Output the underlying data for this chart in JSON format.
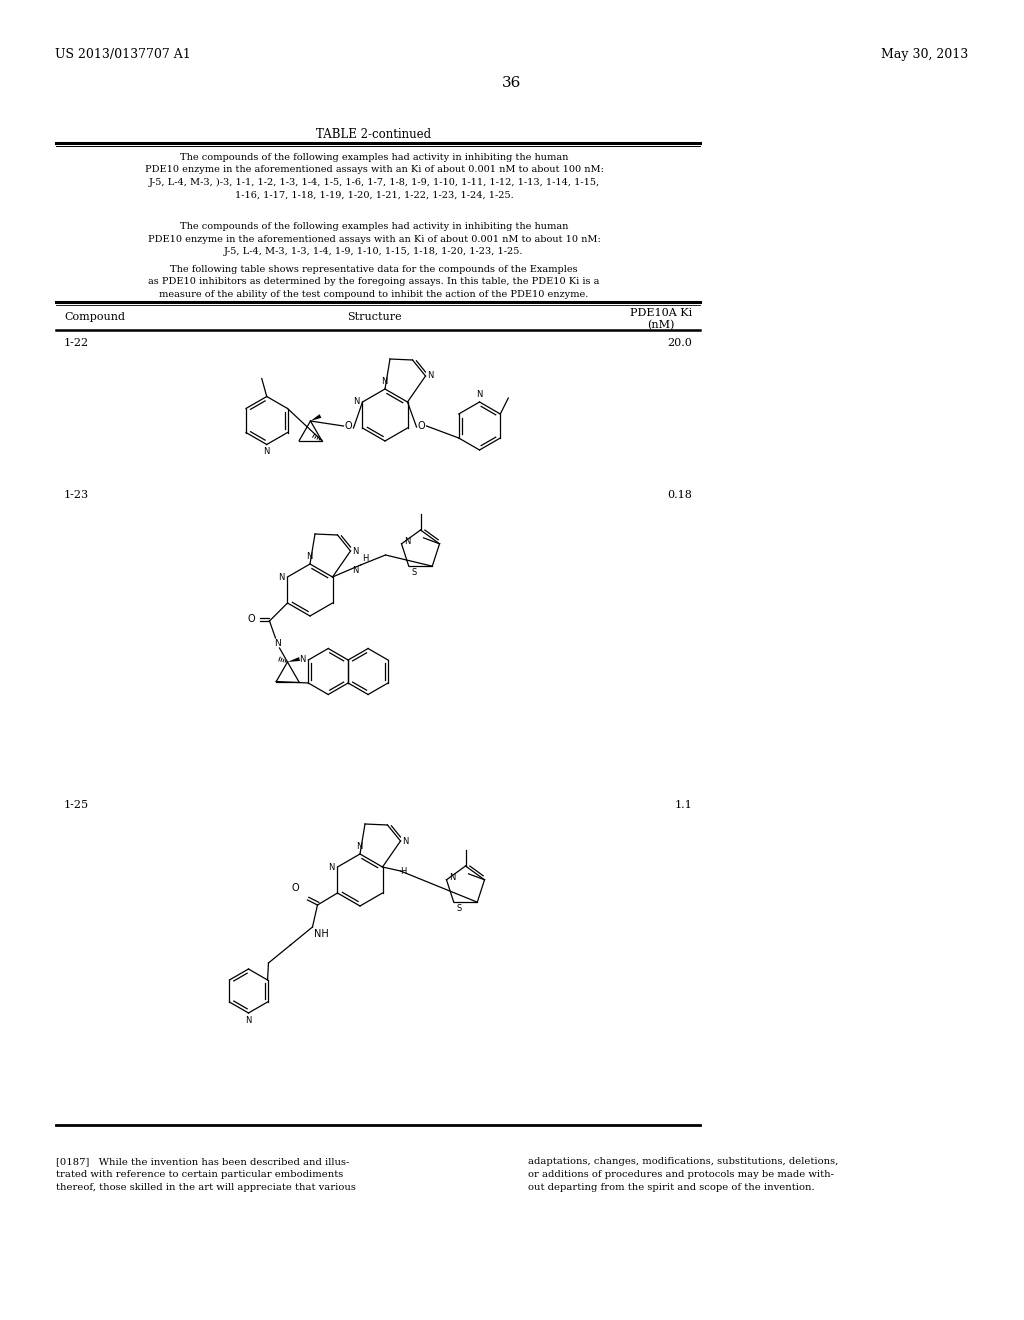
{
  "background_color": "#ffffff",
  "page_header_left": "US 2013/0137707 A1",
  "page_header_right": "May 30, 2013",
  "page_number": "36",
  "table_title": "TABLE 2-continued",
  "intro_text_1": "The compounds of the following examples had activity in inhibiting the human\nPDE10 enzyme in the aforementioned assays with an Ki of about 0.001 nM to about 100 nM:\nJ-5, L-4, M-3, )-3, 1-1, 1-2, 1-3, 1-4, 1-5, 1-6, 1-7, 1-8, 1-9, 1-10, 1-11, 1-12, 1-13, 1-14, 1-15,\n1-16, 1-17, 1-18, 1-19, 1-20, 1-21, 1-22, 1-23, 1-24, 1-25.",
  "intro_text_2": "The compounds of the following examples had activity in inhibiting the human\nPDE10 enzyme in the aforementioned assays with an Ki of about 0.001 nM to about 10 nM:\nJ-5, L-4, M-3, 1-3, 1-4, 1-9, 1-10, 1-15, 1-18, 1-20, 1-23, 1-25.",
  "intro_text_3": "The following table shows representative data for the compounds of the Examples\nas PDE10 inhibitors as determined by the foregoing assays. In this table, the PDE10 Ki is a\nmeasure of the ability of the test compound to inhibit the action of the PDE10 enzyme.",
  "col_compound": "Compound",
  "col_structure": "Structure",
  "col_ki": "PDE10A Ki\n(nM)",
  "row1_id": "1-22",
  "row1_ki": "20.0",
  "row2_id": "1-23",
  "row2_ki": "0.18",
  "row3_id": "1-25",
  "row3_ki": "1.1",
  "footer_ref": "[0187]",
  "footer_left": "While the invention has been described and illus-\ntrated with reference to certain particular embodiments\nthereof, those skilled in the art will appreciate that various",
  "footer_right": "adaptations, changes, modifications, substitutions, deletions,\nor additions of procedures and protocols may be made with-\nout departing from the spirit and scope of the invention."
}
